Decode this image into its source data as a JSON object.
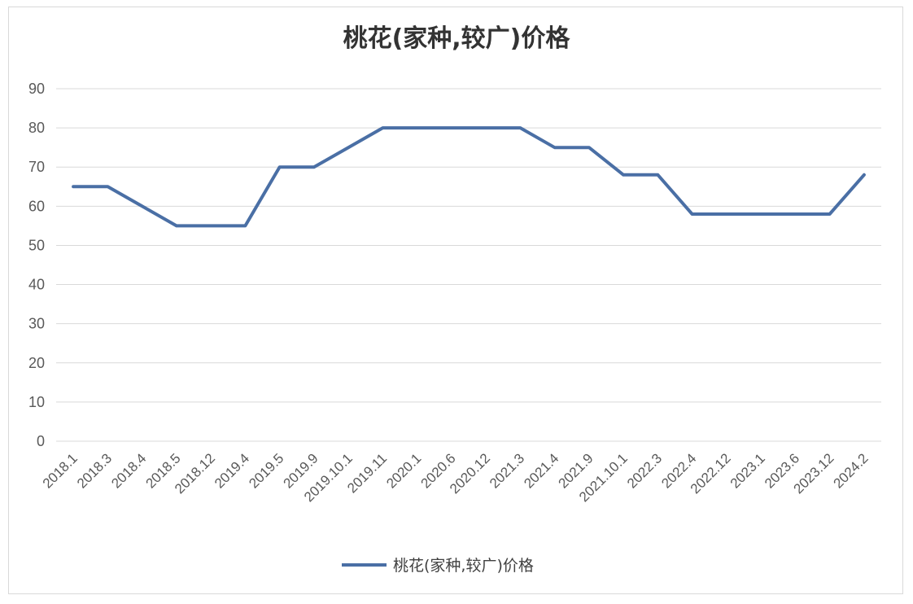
{
  "chart_data": {
    "type": "line",
    "title": "桃花(家种,较广)价格",
    "categories": [
      "2018.1",
      "2018.3",
      "2018.4",
      "2018.5",
      "2018.12",
      "2019.4",
      "2019.5",
      "2019.9",
      "2019.10.1",
      "2019.11",
      "2020.1",
      "2020.6",
      "2020.12",
      "2021.3",
      "2021.4",
      "2021.9",
      "2021.10.1",
      "2022.3",
      "2022.4",
      "2022.12",
      "2023.1",
      "2023.6",
      "2023.12",
      "2024.2"
    ],
    "series": [
      {
        "name": "桃花(家种,较广)价格",
        "color": "#4a6fa5",
        "values": [
          65,
          65,
          60,
          55,
          55,
          55,
          70,
          70,
          75,
          80,
          80,
          80,
          80,
          80,
          75,
          75,
          68,
          68,
          58,
          58,
          58,
          58,
          58,
          68
        ]
      }
    ],
    "y_ticks": [
      0,
      10,
      20,
      30,
      40,
      50,
      60,
      70,
      80,
      90
    ],
    "ylim": [
      0,
      90
    ],
    "xlabel": "",
    "ylabel": "",
    "grid": true,
    "legend_position": "bottom"
  }
}
